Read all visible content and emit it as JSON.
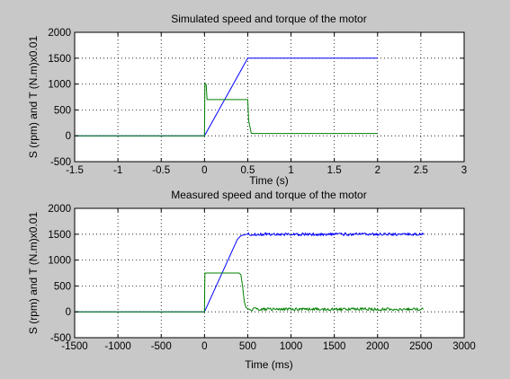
{
  "figure": {
    "background": "#c8c8c8"
  },
  "chart_data": [
    {
      "type": "line",
      "title": "Simulated speed and torque of the motor",
      "xlabel": "Time (s)",
      "ylabel": "S (rpm) and T (N.m)x0.01",
      "xlim": [
        -1.5,
        3
      ],
      "ylim": [
        -500,
        2000
      ],
      "xticks": [
        -1.5,
        -1,
        -0.5,
        0,
        0.5,
        1,
        1.5,
        2,
        2.5,
        3
      ],
      "xtick_labels": [
        "-1.5",
        "-1",
        "-0.5",
        "0",
        "0.5",
        "1",
        "1.5",
        "2",
        "2.5",
        "3"
      ],
      "yticks": [
        -500,
        0,
        500,
        1000,
        1500,
        2000
      ],
      "ytick_labels": [
        "-500",
        "0",
        "500",
        "1000",
        "1500",
        "2000"
      ],
      "grid": true,
      "series": [
        {
          "color": "#0000ff",
          "x": [
            -1.5,
            0,
            0.5,
            2
          ],
          "y": [
            0,
            0,
            1500,
            1500
          ]
        },
        {
          "color": "#008000",
          "x": [
            -1.5,
            0,
            0.005,
            0.02,
            0.03,
            0.05,
            0.08,
            0.5,
            0.51,
            0.54,
            0.57,
            2
          ],
          "y": [
            0,
            0,
            1020,
            980,
            700,
            700,
            700,
            700,
            300,
            50,
            45,
            45
          ]
        }
      ]
    },
    {
      "type": "line",
      "title": "Measured speed and torque of the motor",
      "xlabel": "Time (ms)",
      "ylabel": "S (rpm) and T (N.m)x0.01",
      "xlim": [
        -1500,
        3000
      ],
      "ylim": [
        -500,
        2000
      ],
      "xticks": [
        -1500,
        -1000,
        -500,
        0,
        500,
        1000,
        1500,
        2000,
        2500,
        3000
      ],
      "xtick_labels": [
        "-1500",
        "-1000",
        "-500",
        "0",
        "500",
        "1000",
        "1500",
        "2000",
        "2500",
        "3000"
      ],
      "yticks": [
        -500,
        0,
        500,
        1000,
        1500,
        2000
      ],
      "ytick_labels": [
        "-500",
        "0",
        "500",
        "1000",
        "1500",
        "2000"
      ],
      "grid": true,
      "series": [
        {
          "color": "#0000ff",
          "noisy": true,
          "x": [
            -1500,
            0,
            380,
            420,
            460,
            500,
            2530
          ],
          "y": [
            0,
            0,
            1400,
            1470,
            1490,
            1500,
            1500
          ]
        },
        {
          "color": "#008000",
          "noisy": true,
          "x": [
            -1500,
            0,
            5,
            400,
            420,
            440,
            460,
            480,
            520,
            2530
          ],
          "y": [
            0,
            0,
            750,
            750,
            720,
            500,
            200,
            80,
            50,
            50
          ]
        }
      ]
    }
  ]
}
